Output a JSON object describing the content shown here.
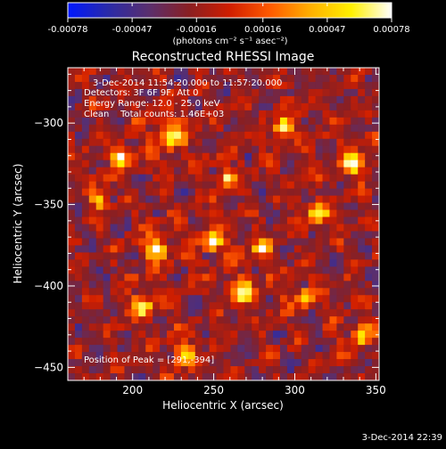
{
  "chart_data": {
    "type": "heatmap",
    "title": "Reconstructed RHESSI Image",
    "xlabel": "Heliocentric X (arcsec)",
    "ylabel": "Heliocentric Y (arcsec)",
    "xlim": [
      160,
      352
    ],
    "ylim": [
      -458,
      -266
    ],
    "x_ticks": [
      200,
      250,
      300,
      350
    ],
    "y_ticks": [
      -300,
      -350,
      -400,
      -450
    ],
    "colorbar": {
      "min": -0.00078,
      "max": 0.00078,
      "ticks": [
        {
          "value": -0.00078,
          "label": "-0.00078"
        },
        {
          "value": -0.00047,
          "label": "-0.00047"
        },
        {
          "value": -0.00016,
          "label": "-0.00016"
        },
        {
          "value": 0.00016,
          "label": "0.00016"
        },
        {
          "value": 0.00047,
          "label": "0.00047"
        },
        {
          "value": 0.00078,
          "label": "0.00078"
        }
      ],
      "units": "(photons cm⁻² s⁻¹ asec⁻²)",
      "colors": [
        "#0018ff",
        "#2a2aa8",
        "#5a2f6e",
        "#8a1f22",
        "#d01e00",
        "#ff5a00",
        "#ffb000",
        "#fff000",
        "#ffffff"
      ]
    },
    "info_lines": [
      "3-Dec-2014 11:54:20.000 to 11:57:20.000",
      "Detectors: 3F 6F 9F, Att 0",
      "Energy Range: 12.0 - 25.0 keV",
      "Clean    Total counts: 1.46E+03"
    ],
    "peak_label": "Position of Peak = [291,-394]",
    "timestamp": "3-Dec-2014 22:39",
    "grid": false,
    "legend": "none"
  }
}
